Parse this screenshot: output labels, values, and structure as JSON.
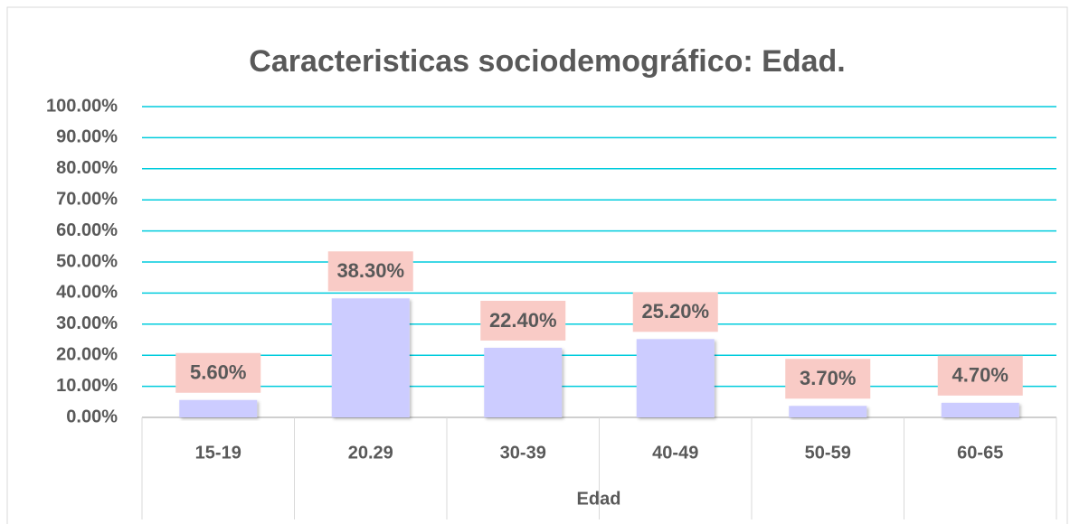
{
  "chart_data": {
    "type": "bar",
    "title": "Caracteristicas  sociodemográfico: Edad.",
    "x_label": "Edad",
    "categories": [
      "15-19",
      "20.29",
      "30-39",
      "40-49",
      "50-59",
      "60-65"
    ],
    "values": [
      5.6,
      38.3,
      22.4,
      25.2,
      3.7,
      4.7
    ],
    "value_labels": [
      "5.60%",
      "38.30%",
      "22.40%",
      "25.20%",
      "3.70%",
      "4.70%"
    ],
    "color": "#ccccff",
    "ylim": [
      0,
      100
    ],
    "yticks": [
      {
        "value": 0,
        "label": "0.00%"
      },
      {
        "value": 10,
        "label": "10.00%"
      },
      {
        "value": 20,
        "label": "20.00%"
      },
      {
        "value": 30,
        "label": "30.00%"
      },
      {
        "value": 40,
        "label": "40.00%"
      },
      {
        "value": 50,
        "label": "50.00%"
      },
      {
        "value": 60,
        "label": "60.00%"
      },
      {
        "value": 70,
        "label": "70.00%"
      },
      {
        "value": 80,
        "label": "80.00%"
      },
      {
        "value": 90,
        "label": "90.00%"
      },
      {
        "value": 100,
        "label": "100.00%"
      }
    ],
    "grid": true
  }
}
